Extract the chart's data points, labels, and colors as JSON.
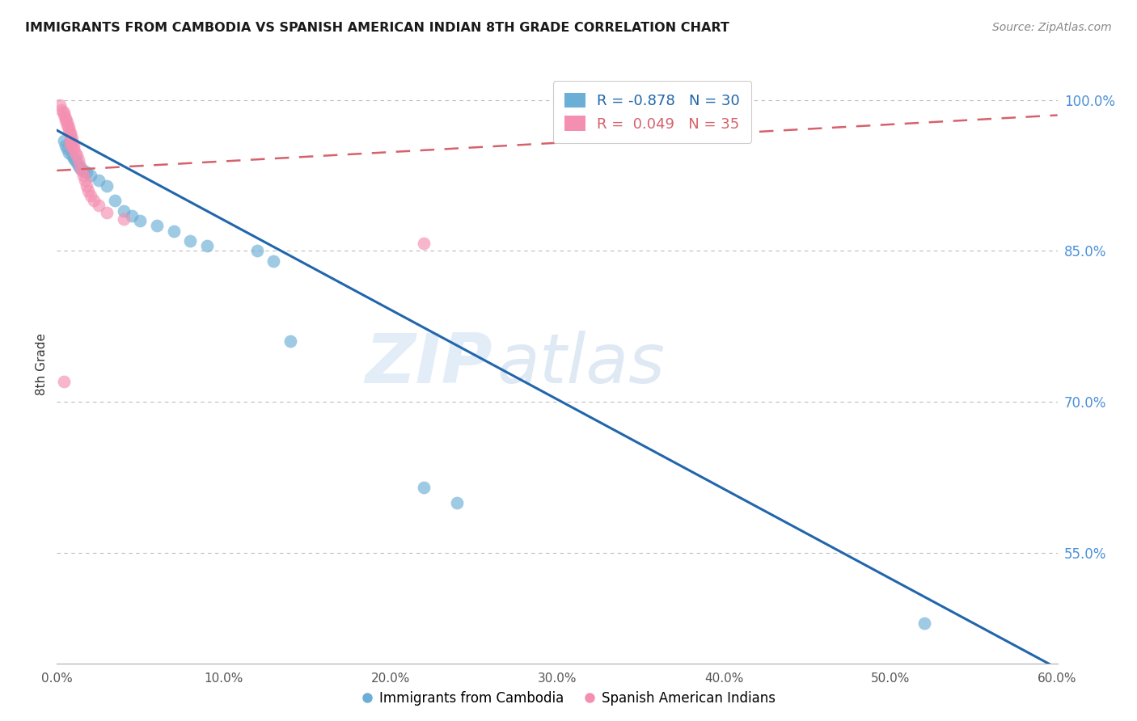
{
  "title": "IMMIGRANTS FROM CAMBODIA VS SPANISH AMERICAN INDIAN 8TH GRADE CORRELATION CHART",
  "source": "Source: ZipAtlas.com",
  "ylabel": "8th Grade",
  "xlabel_ticks": [
    "0.0%",
    "10.0%",
    "20.0%",
    "30.0%",
    "40.0%",
    "50.0%",
    "60.0%"
  ],
  "xlabel_vals": [
    0.0,
    0.1,
    0.2,
    0.3,
    0.4,
    0.5,
    0.6
  ],
  "ylabel_ticks": [
    "100.0%",
    "85.0%",
    "70.0%",
    "55.0%"
  ],
  "ylabel_vals": [
    1.0,
    0.85,
    0.7,
    0.55
  ],
  "xlim": [
    0.0,
    0.6
  ],
  "ylim": [
    0.44,
    1.035
  ],
  "blue_R": -0.878,
  "blue_N": 30,
  "pink_R": 0.049,
  "pink_N": 35,
  "blue_color": "#6baed6",
  "pink_color": "#f48fb1",
  "blue_line_color": "#2166ac",
  "pink_line_color": "#d6616b",
  "watermark_zip": "ZIP",
  "watermark_atlas": "atlas",
  "blue_scatter_x": [
    0.004,
    0.005,
    0.006,
    0.007,
    0.008,
    0.009,
    0.01,
    0.011,
    0.012,
    0.013,
    0.014,
    0.016,
    0.018,
    0.02,
    0.025,
    0.03,
    0.035,
    0.04,
    0.045,
    0.05,
    0.06,
    0.07,
    0.08,
    0.09,
    0.12,
    0.13,
    0.14,
    0.22,
    0.24,
    0.52
  ],
  "blue_scatter_y": [
    0.96,
    0.955,
    0.952,
    0.948,
    0.96,
    0.945,
    0.942,
    0.94,
    0.938,
    0.935,
    0.932,
    0.93,
    0.928,
    0.925,
    0.92,
    0.915,
    0.9,
    0.89,
    0.885,
    0.88,
    0.875,
    0.87,
    0.86,
    0.855,
    0.85,
    0.84,
    0.76,
    0.615,
    0.6,
    0.48
  ],
  "pink_scatter_x": [
    0.002,
    0.003,
    0.004,
    0.004,
    0.005,
    0.005,
    0.006,
    0.006,
    0.007,
    0.007,
    0.008,
    0.008,
    0.009,
    0.009,
    0.01,
    0.01,
    0.011,
    0.012,
    0.013,
    0.014,
    0.015,
    0.016,
    0.017,
    0.018,
    0.019,
    0.02,
    0.022,
    0.025,
    0.03,
    0.04,
    0.008,
    0.009,
    0.008,
    0.22,
    0.004
  ],
  "pink_scatter_y": [
    0.995,
    0.99,
    0.988,
    0.985,
    0.982,
    0.98,
    0.978,
    0.975,
    0.973,
    0.97,
    0.968,
    0.965,
    0.962,
    0.958,
    0.955,
    0.952,
    0.948,
    0.945,
    0.94,
    0.935,
    0.93,
    0.925,
    0.92,
    0.915,
    0.91,
    0.905,
    0.9,
    0.895,
    0.888,
    0.882,
    0.955,
    0.958,
    0.96,
    0.858,
    0.72
  ],
  "blue_line_x": [
    0.0,
    0.6
  ],
  "blue_line_y": [
    0.97,
    0.435
  ],
  "pink_line_x": [
    0.0,
    0.6
  ],
  "pink_line_y": [
    0.93,
    0.985
  ]
}
